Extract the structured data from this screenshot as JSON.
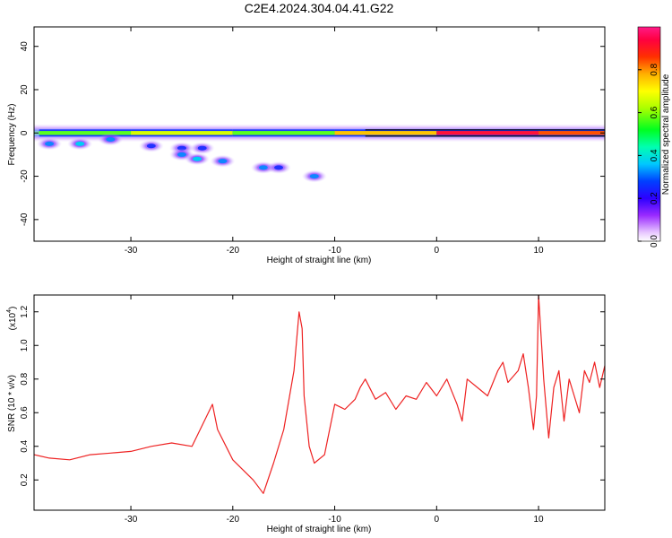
{
  "title": "C2E4.2024.304.04.41.G22",
  "colors": {
    "snr_line": "#ee2222",
    "axis": "#000000",
    "background": "#ffffff"
  },
  "chart_data": [
    {
      "type": "heatmap",
      "title": "C2E4.2024.304.04.41.G22",
      "xlabel": "Height of straight line (km)",
      "ylabel": "Frequency (Hz)",
      "xlim": [
        -39.5,
        16.5
      ],
      "ylim": [
        -50,
        49
      ],
      "x_ticks": [
        "-30",
        "-20",
        "-10",
        "0",
        "10"
      ],
      "x_tick_values": [
        -30,
        -20,
        -10,
        0,
        10
      ],
      "y_ticks": [
        "40",
        "20",
        "0",
        "-20",
        "-40"
      ],
      "y_tick_values": [
        40,
        20,
        0,
        -20,
        -40
      ],
      "colorbar": {
        "label": "Normalized spectral amplitude",
        "range": [
          0,
          1
        ],
        "tick_labels": [
          "0.0",
          "0.2",
          "0.4",
          "0.6",
          "0.8"
        ],
        "tick_values": [
          0.0,
          0.2,
          0.4,
          0.6,
          0.8
        ],
        "colormap": "rainbow (purple-blue-cyan-green-yellow-orange-red-magenta)"
      },
      "main_band": {
        "frequency_hz": 0,
        "segments": [
          {
            "x_start": -39,
            "x_end": -30,
            "amplitude": 0.55
          },
          {
            "x_start": -30,
            "x_end": -20,
            "amplitude": 0.65
          },
          {
            "x_start": -20,
            "x_end": -10,
            "amplitude": 0.55
          },
          {
            "x_start": -10,
            "x_end": 0,
            "amplitude": 0.75
          },
          {
            "x_start": 0,
            "x_end": 10,
            "amplitude": 0.95
          },
          {
            "x_start": 10,
            "x_end": 16.5,
            "amplitude": 0.85
          }
        ]
      },
      "secondary_features": [
        {
          "x": -38,
          "y": -5,
          "amplitude": 0.3
        },
        {
          "x": -35,
          "y": -5,
          "amplitude": 0.35
        },
        {
          "x": -32,
          "y": -3,
          "amplitude": 0.3
        },
        {
          "x": -28,
          "y": -6,
          "amplitude": 0.25
        },
        {
          "x": -25,
          "y": -7,
          "amplitude": 0.25
        },
        {
          "x": -23,
          "y": -7,
          "amplitude": 0.25
        },
        {
          "x": -25,
          "y": -10,
          "amplitude": 0.3
        },
        {
          "x": -23.5,
          "y": -12,
          "amplitude": 0.35
        },
        {
          "x": -21,
          "y": -13,
          "amplitude": 0.3
        },
        {
          "x": -17,
          "y": -16,
          "amplitude": 0.3
        },
        {
          "x": -15.5,
          "y": -16,
          "amplitude": 0.25
        },
        {
          "x": -12,
          "y": -20,
          "amplitude": 0.3
        }
      ]
    },
    {
      "type": "line",
      "xlabel": "Height of straight line (km)",
      "ylabel": "SNR (10 * v/v)",
      "y_multiplier_label": "(x10",
      "y_multiplier_exponent": "4",
      "y_multiplier_close": ")",
      "xlim": [
        -39.5,
        16.5
      ],
      "ylim": [
        0.02,
        1.3
      ],
      "x_ticks": [
        "-30",
        "-20",
        "-10",
        "0",
        "10"
      ],
      "x_tick_values": [
        -30,
        -20,
        -10,
        0,
        10
      ],
      "y_ticks": [
        "0.2",
        "0.4",
        "0.6",
        "0.8",
        "1.0",
        "1.2"
      ],
      "y_tick_values": [
        0.2,
        0.4,
        0.6,
        0.8,
        1.0,
        1.2
      ],
      "series": [
        {
          "color": "#ee2222",
          "x": [
            -39.5,
            -38,
            -36,
            -34,
            -32,
            -30,
            -28,
            -26,
            -24,
            -22,
            -21.5,
            -20,
            -18,
            -17,
            -16,
            -15,
            -14,
            -13.5,
            -13.2,
            -13,
            -12.5,
            -12,
            -11,
            -10,
            -9,
            -8,
            -7.5,
            -7,
            -6,
            -5,
            -4,
            -3,
            -2,
            -1,
            0,
            1,
            2,
            2.5,
            3,
            4,
            5,
            6,
            6.5,
            7,
            8,
            8.5,
            9,
            9.5,
            9.8,
            10,
            10.5,
            11,
            11.5,
            12,
            12.5,
            13,
            13.5,
            14,
            14.5,
            15,
            15.5,
            16,
            16.5
          ],
          "y": [
            0.35,
            0.33,
            0.32,
            0.35,
            0.36,
            0.37,
            0.4,
            0.42,
            0.4,
            0.65,
            0.5,
            0.32,
            0.2,
            0.12,
            0.3,
            0.5,
            0.85,
            1.2,
            1.1,
            0.7,
            0.4,
            0.3,
            0.35,
            0.65,
            0.62,
            0.68,
            0.75,
            0.8,
            0.68,
            0.72,
            0.62,
            0.7,
            0.68,
            0.78,
            0.7,
            0.8,
            0.65,
            0.55,
            0.8,
            0.75,
            0.7,
            0.85,
            0.9,
            0.78,
            0.85,
            0.95,
            0.75,
            0.5,
            0.7,
            1.3,
            0.8,
            0.45,
            0.75,
            0.85,
            0.55,
            0.8,
            0.7,
            0.6,
            0.85,
            0.78,
            0.9,
            0.75,
            0.88
          ]
        }
      ]
    }
  ]
}
